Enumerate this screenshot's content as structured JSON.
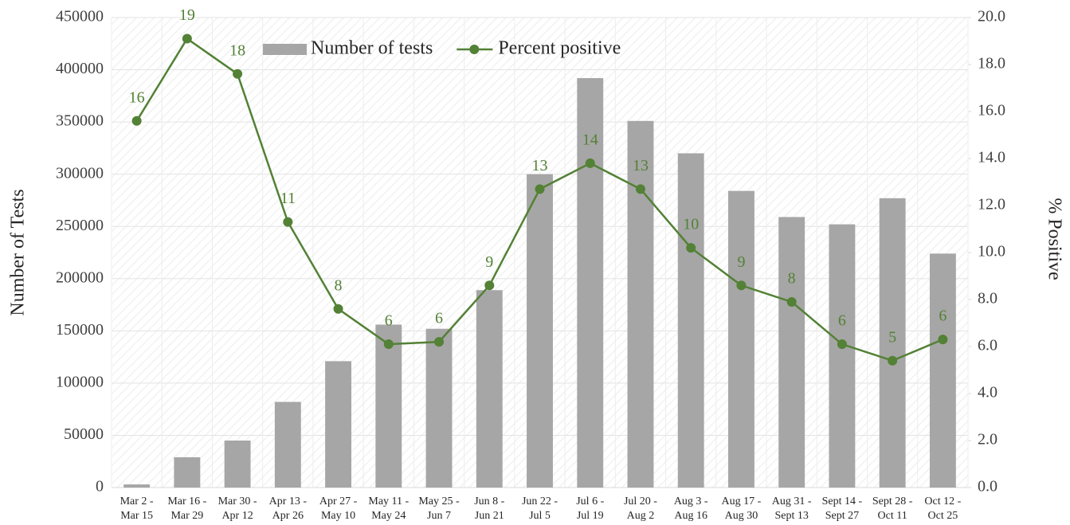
{
  "chart_data": {
    "type": "combo",
    "categories": [
      [
        "Mar 2 -",
        "Mar 15"
      ],
      [
        "Mar 16 -",
        "Mar 29"
      ],
      [
        "Mar 30 -",
        "Apr 12"
      ],
      [
        "Apr 13 -",
        "Apr 26"
      ],
      [
        "Apr 27 -",
        "May 10"
      ],
      [
        "May 11 -",
        "May 24"
      ],
      [
        "May 25 -",
        "Jun 7"
      ],
      [
        "Jun 8 -",
        "Jun 21"
      ],
      [
        "Jun 22 -",
        "Jul 5"
      ],
      [
        "Jul 6 -",
        "Jul 19"
      ],
      [
        "Jul 20 -",
        "Aug 2"
      ],
      [
        "Aug 3 -",
        "Aug 16"
      ],
      [
        "Aug 17 -",
        "Aug 30"
      ],
      [
        "Aug 31 -",
        "Sept 13"
      ],
      [
        "Sept 14 -",
        "Sept 27"
      ],
      [
        "Sept 28 -",
        "Oct 11"
      ],
      [
        "Oct 12 -",
        "Oct 25"
      ]
    ],
    "series": [
      {
        "name": "Number of tests",
        "type": "bar",
        "color": "#a6a6a6",
        "values": [
          3000,
          29000,
          45000,
          82000,
          121000,
          156000,
          152000,
          189000,
          300000,
          392000,
          351000,
          320000,
          284000,
          259000,
          252000,
          277000,
          224000
        ]
      },
      {
        "name": "Percent positive",
        "type": "line",
        "axis": "y2",
        "color": "#538135",
        "values": [
          15.6,
          19.1,
          17.6,
          11.3,
          7.6,
          6.1,
          6.2,
          8.6,
          12.7,
          13.8,
          12.7,
          10.2,
          8.6,
          7.9,
          6.1,
          5.4,
          6.3
        ],
        "value_labels": [
          "16",
          "19",
          "18",
          "11",
          "8",
          "6",
          "6",
          "9",
          "13",
          "14",
          "13",
          "10",
          "9",
          "8",
          "6",
          "5",
          "6"
        ]
      }
    ],
    "ylabel": "Number of Tests",
    "y2label": "% Positive",
    "ylim": [
      0,
      450000
    ],
    "yticks": [
      0,
      50000,
      100000,
      150000,
      200000,
      250000,
      300000,
      350000,
      400000,
      450000
    ],
    "y2lim": [
      0,
      20
    ],
    "y2ticks": [
      {
        "value": 0,
        "label": "0.0"
      },
      {
        "value": 2,
        "label": "2.0"
      },
      {
        "value": 4,
        "label": "4.0"
      },
      {
        "value": 6,
        "label": "6.0"
      },
      {
        "value": 8,
        "label": "8.0"
      },
      {
        "value": 10,
        "label": "10.0"
      },
      {
        "value": 12,
        "label": "12.0"
      },
      {
        "value": 14,
        "label": "14.0"
      },
      {
        "value": 16,
        "label": "16.0"
      },
      {
        "value": 18,
        "label": "18.0"
      },
      {
        "value": 20,
        "label": "20.0"
      }
    ],
    "grid": true,
    "legend": "top"
  }
}
